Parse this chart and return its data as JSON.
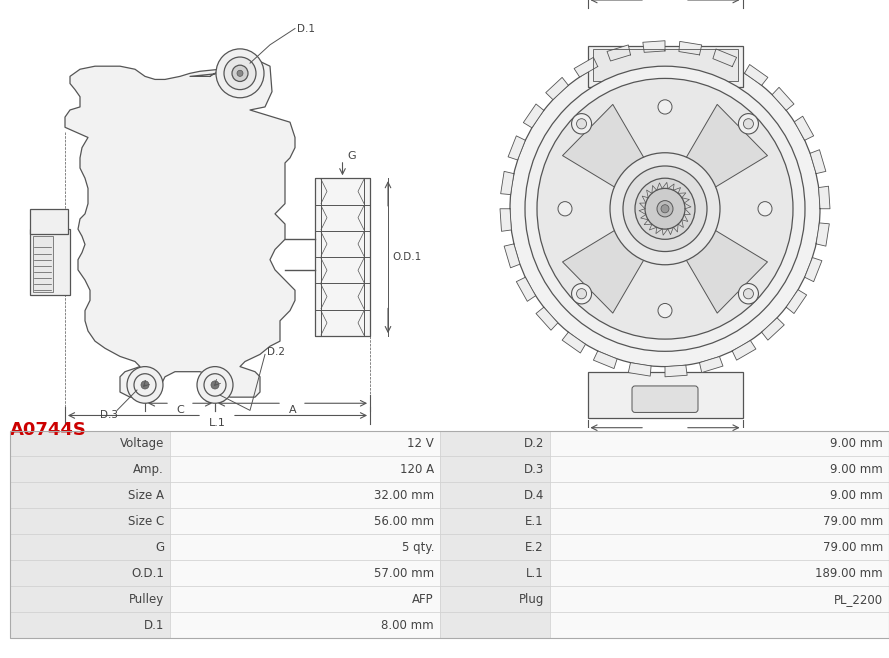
{
  "title": "A0744S",
  "title_color": "#cc0000",
  "table_rows": [
    [
      "Voltage",
      "12 V",
      "D.2",
      "9.00 mm"
    ],
    [
      "Amp.",
      "120 A",
      "D.3",
      "9.00 mm"
    ],
    [
      "Size A",
      "32.00 mm",
      "D.4",
      "9.00 mm"
    ],
    [
      "Size C",
      "56.00 mm",
      "E.1",
      "79.00 mm"
    ],
    [
      "G",
      "5 qty.",
      "E.2",
      "79.00 mm"
    ],
    [
      "O.D.1",
      "57.00 mm",
      "L.1",
      "189.00 mm"
    ],
    [
      "Pulley",
      "AFP",
      "Plug",
      "PL_2200"
    ],
    [
      "D.1",
      "8.00 mm",
      "",
      ""
    ]
  ],
  "bg_white": "#ffffff",
  "text_color": "#444444",
  "line_color": "#555555"
}
